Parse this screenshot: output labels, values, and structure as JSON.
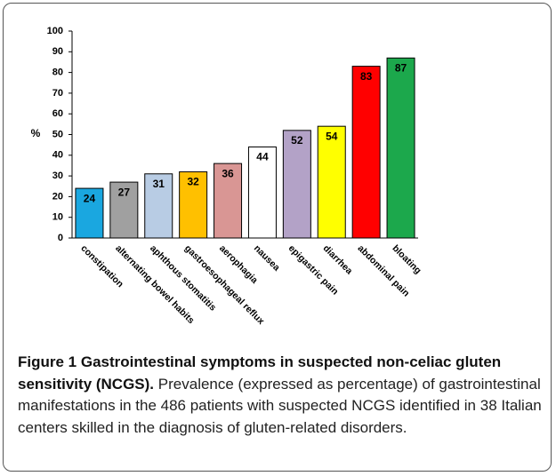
{
  "chart_data": {
    "type": "bar",
    "ylabel": "%",
    "categories": [
      "constipation",
      "alternating bowel habits",
      "aphthous stomatitis",
      "gastroesophageal reflux",
      "aerophagia",
      "nausea",
      "epigastric pain",
      "diarrhea",
      "abdominal pain",
      "bloating"
    ],
    "values": [
      24,
      27,
      31,
      32,
      36,
      44,
      52,
      54,
      83,
      87
    ],
    "colors": [
      "#1aa7e0",
      "#a0a0a0",
      "#b8cce4",
      "#ffc000",
      "#d99694",
      "#ffffff",
      "#b3a2c7",
      "#ffff00",
      "#ff0000",
      "#1ca84c"
    ],
    "ylim": [
      0,
      100
    ],
    "yticks": [
      0,
      10,
      20,
      30,
      40,
      50,
      60,
      70,
      80,
      90,
      100
    ],
    "grid": false
  },
  "caption": {
    "title": "Figure 1 Gastrointestinal symptoms in suspected non-celiac gluten sensitivity (NCGS).",
    "text": "Prevalence (expressed as percentage) of gastrointestinal manifestations in the 486 patients with suspected NCGS identified in 38 Italian centers skilled in the diagnosis of gluten-related disorders."
  }
}
